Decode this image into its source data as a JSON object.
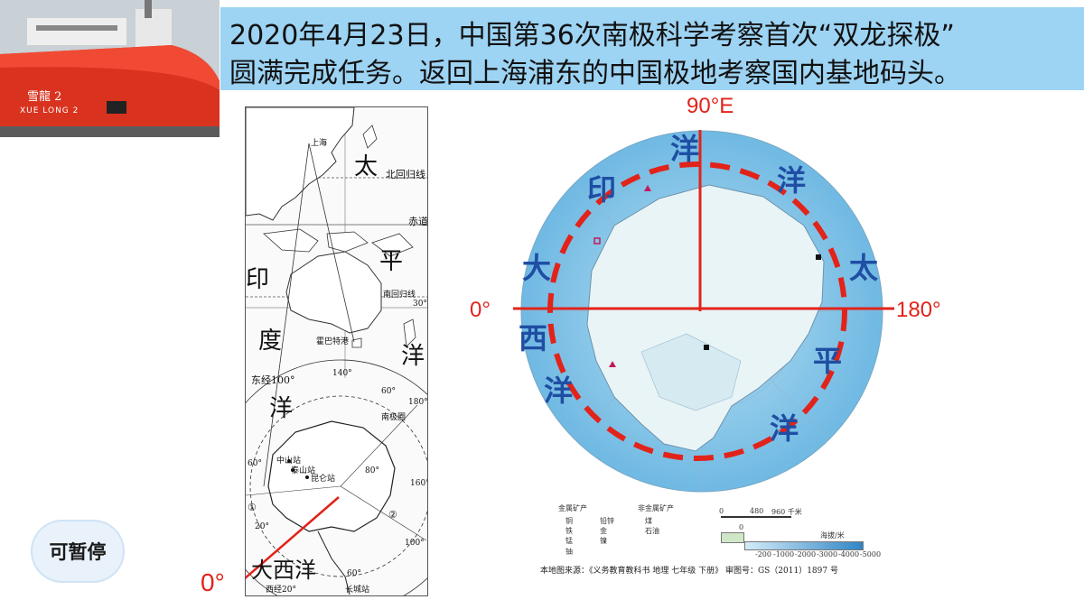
{
  "photo": {
    "ship_name": "雪龍 2",
    "ship_caption": "XUE LONG 2"
  },
  "title": {
    "line1": "2020年4月23日，中国第36次南极科学考察首次“双龙探极”",
    "line2": "圆满完成任务。返回上海浦东的中国极地考察国内基地码头。"
  },
  "left_map": {
    "labels": {
      "shanghai": "上海",
      "tai": "太",
      "ping": "平",
      "yang_pacific": "洋",
      "north_tropic": "北回归线",
      "equator": "赤道",
      "yin": "印",
      "du": "度",
      "yang_indian": "洋",
      "south_tropic": "南回归线",
      "lat30": "30°",
      "hobart": "霍巴特港",
      "lon140": "140°",
      "east100": "东经100°",
      "lat60": "60°",
      "lon180": "180°",
      "antarctic_circle": "南极圈",
      "zhongshan": "中山站",
      "taishan": "泰山站",
      "kunlun": "昆仑站",
      "lat60_left": "60°",
      "lat80": "80°",
      "lon160": "160°",
      "route1": "①",
      "lon20": "20°",
      "route2": "②",
      "lon100": "100°",
      "atlantic": "大西洋",
      "lon60": "60°",
      "west20": "西经20°",
      "greatwall": "长城站"
    }
  },
  "left_zero": "0°",
  "pause_button": "可暂停",
  "right_map": {
    "label_90e": "90°E",
    "label_0": "0°",
    "label_180": "180°",
    "indian_ocean": [
      "印",
      "度",
      "洋"
    ],
    "pacific_ocean": [
      "太",
      "平",
      "洋"
    ],
    "atlantic_ocean": [
      "大",
      "西",
      "洋"
    ],
    "accent_red": "#e2231a",
    "ocean_blue": "#1f4ea3"
  },
  "legend": {
    "metal_title": "金属矿产",
    "copper": "铜",
    "leadzinc": "铅锌",
    "iron": "铁",
    "gold": "金",
    "manganese": "锰",
    "nickel": "镍",
    "uranium": "铀",
    "nonmetal_title": "非金属矿产",
    "coal": "煤",
    "oil": "石油",
    "scale_0": "0",
    "scale_480": "480",
    "scale_960": "960 千米",
    "depth_title": "海拔/米",
    "d0": "0",
    "d200": "-200",
    "d1000": "-1000",
    "d2000": "-2000",
    "d3000": "-3000",
    "d4000": "-4000",
    "d5000": "-5000"
  },
  "source": "本地图来源：《义务教育教科书 地理 七年级 下册》 审图号：GS（2011）1897 号"
}
